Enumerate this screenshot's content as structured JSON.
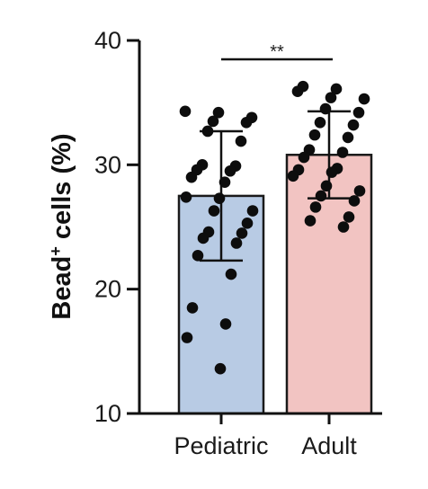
{
  "chart_data": {
    "type": "bar",
    "title": "",
    "xlabel": "",
    "ylabel": "Bead",
    "ylabel_superscript": "+",
    "ylabel_suffix": " cells (%)",
    "ylim": [
      10,
      40
    ],
    "yticks": [
      "10",
      "20",
      "30",
      "40"
    ],
    "categories": [
      "Pediatric",
      "Adult"
    ],
    "values": [
      27.5,
      30.8
    ],
    "error_sd": [
      5.2,
      3.5
    ],
    "bar_colors": [
      "#b8cbe4",
      "#f2c4c2"
    ],
    "significance": {
      "label": "**",
      "between": [
        "Pediatric",
        "Adult"
      ]
    },
    "points": [
      [
        34.3,
        34.2,
        33.8,
        33.5,
        33.4,
        32.7,
        31.9,
        30.0,
        29.9,
        29.6,
        29.5,
        29.0,
        28.6,
        27.4,
        27.3,
        26.3,
        26.3,
        25.3,
        24.6,
        24.5,
        24.1,
        23.7,
        22.7,
        21.2,
        18.5,
        17.2,
        16.1,
        13.6
      ],
      [
        36.3,
        36.1,
        35.9,
        35.4,
        35.3,
        34.5,
        34.2,
        33.4,
        33.2,
        32.4,
        32.2,
        31.2,
        31.0,
        30.6,
        29.7,
        29.6,
        29.4,
        29.1,
        28.3,
        27.9,
        27.5,
        27.1,
        26.6,
        25.8,
        25.5,
        25.0
      ]
    ]
  }
}
